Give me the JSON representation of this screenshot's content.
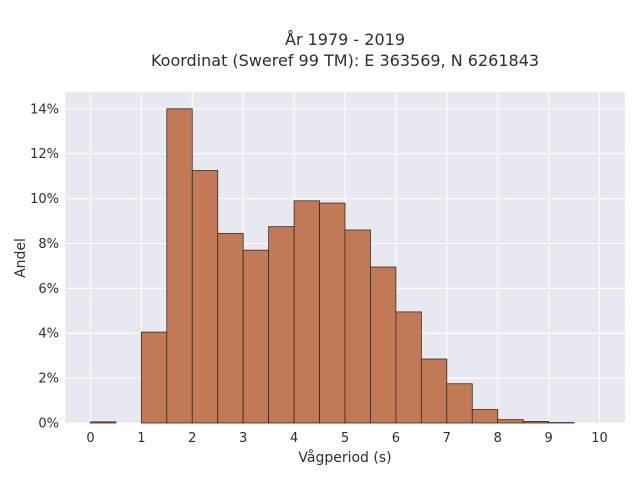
{
  "chart_data": {
    "type": "bar",
    "title_line1": "År 1979 - 2019",
    "title_line2": "Koordinat (Sweref 99 TM): E 363569, N 6261843",
    "xlabel": "Vågperiod (s)",
    "ylabel": "Andel",
    "bin_width": 0.5,
    "bins_start": [
      0,
      0.5,
      1,
      1.5,
      2,
      2.5,
      3,
      3.5,
      4,
      4.5,
      5,
      5.5,
      6,
      6.5,
      7,
      7.5,
      8,
      8.5,
      9,
      9.5
    ],
    "values": [
      0.05,
      0,
      4.05,
      14.0,
      11.25,
      8.45,
      7.7,
      8.75,
      9.9,
      9.8,
      8.6,
      6.95,
      4.95,
      2.85,
      1.75,
      0.6,
      0.15,
      0.07,
      0.02,
      0
    ],
    "xlim": [
      -0.5,
      10.5
    ],
    "ylim": [
      0,
      14.75
    ],
    "x_ticks": [
      0,
      1,
      2,
      3,
      4,
      5,
      6,
      7,
      8,
      9,
      10
    ],
    "y_ticks": [
      0,
      2,
      4,
      6,
      8,
      10,
      12,
      14
    ],
    "y_tick_labels": [
      "0%",
      "2%",
      "4%",
      "6%",
      "8%",
      "10%",
      "12%",
      "14%"
    ],
    "grid": true,
    "bar_color": "#c17a55",
    "bar_edge_color": "#3a2a20",
    "plot_background": "#e8e8f0",
    "grid_color": "#ffffff"
  }
}
